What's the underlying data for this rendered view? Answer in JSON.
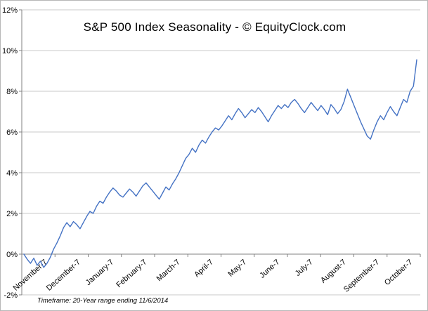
{
  "title": "S&P 500 Index Seasonality - © EquityClock.com",
  "footnote": "Timeframe: 20-Year range ending 11/6/2014",
  "chart_data": {
    "type": "line",
    "title": "S&P 500 Index Seasonality - © EquityClock.com",
    "footnote": "Timeframe: 20-Year range ending 11/6/2014",
    "x_labels": [
      "November-7",
      "December-7",
      "January-7",
      "February-7",
      "March-7",
      "April-7",
      "May-7",
      "June-7",
      "July-7",
      "August-7",
      "September-7",
      "October-7"
    ],
    "ylabel": "",
    "xlabel": "",
    "ylim": [
      -2,
      12
    ],
    "ytick_step": 2,
    "ytick_suffix": "%",
    "grid": "horizontal",
    "legend": "none",
    "line_color": "#4472c4",
    "grid_color": "#c9c9c9",
    "axis_color": "#808080",
    "values": [
      0.0,
      -0.25,
      -0.45,
      -0.2,
      -0.55,
      -0.35,
      -0.65,
      -0.45,
      -0.15,
      0.25,
      0.55,
      0.9,
      1.3,
      1.55,
      1.35,
      1.6,
      1.45,
      1.25,
      1.55,
      1.85,
      2.1,
      2.0,
      2.35,
      2.6,
      2.5,
      2.8,
      3.05,
      3.25,
      3.1,
      2.9,
      2.8,
      3.0,
      3.2,
      3.05,
      2.85,
      3.1,
      3.35,
      3.5,
      3.3,
      3.1,
      2.9,
      2.7,
      3.0,
      3.3,
      3.15,
      3.45,
      3.7,
      4.0,
      4.35,
      4.7,
      4.9,
      5.2,
      5.0,
      5.35,
      5.6,
      5.45,
      5.75,
      6.0,
      6.2,
      6.1,
      6.3,
      6.55,
      6.8,
      6.6,
      6.9,
      7.15,
      6.95,
      6.7,
      6.9,
      7.1,
      6.95,
      7.2,
      7.0,
      6.75,
      6.5,
      6.8,
      7.05,
      7.3,
      7.15,
      7.35,
      7.2,
      7.45,
      7.6,
      7.4,
      7.15,
      6.95,
      7.2,
      7.45,
      7.25,
      7.05,
      7.3,
      7.1,
      6.85,
      7.35,
      7.15,
      6.9,
      7.1,
      7.5,
      8.1,
      7.7,
      7.3,
      6.9,
      6.5,
      6.15,
      5.8,
      5.65,
      6.1,
      6.5,
      6.8,
      6.6,
      6.95,
      7.25,
      7.0,
      6.8,
      7.2,
      7.6,
      7.45,
      8.0,
      8.25,
      9.55
    ]
  }
}
